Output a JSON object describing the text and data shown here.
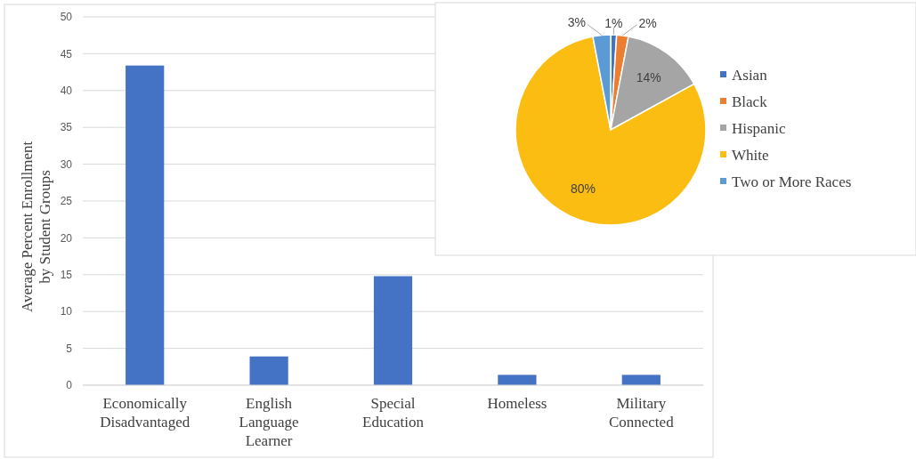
{
  "chart_data": [
    {
      "type": "bar",
      "ylabel": "Average Percent Enrollment by Student Groups",
      "categories": [
        "Economically Disadvantaged",
        "English Language Learner",
        "Special Education",
        "Homeless",
        "Military Connected"
      ],
      "values": [
        43.4,
        3.9,
        14.8,
        1.4,
        1.4
      ],
      "color": "#4472c4",
      "ylim": [
        0,
        50
      ],
      "yticks": [
        0,
        5,
        10,
        15,
        20,
        25,
        30,
        35,
        40,
        45,
        50
      ],
      "grid": "y"
    },
    {
      "type": "pie",
      "categories": [
        "Asian",
        "Black",
        "Hispanic",
        "White",
        "Two or More Races"
      ],
      "values": [
        1,
        2,
        14,
        80,
        3
      ],
      "colors": [
        "#4472c4",
        "#ed7d31",
        "#a5a5a5",
        "#fbbd11",
        "#5b9bd5"
      ],
      "value_labels": [
        "1%",
        "2%",
        "14%",
        "80%",
        "3%"
      ],
      "legend": "right"
    }
  ]
}
